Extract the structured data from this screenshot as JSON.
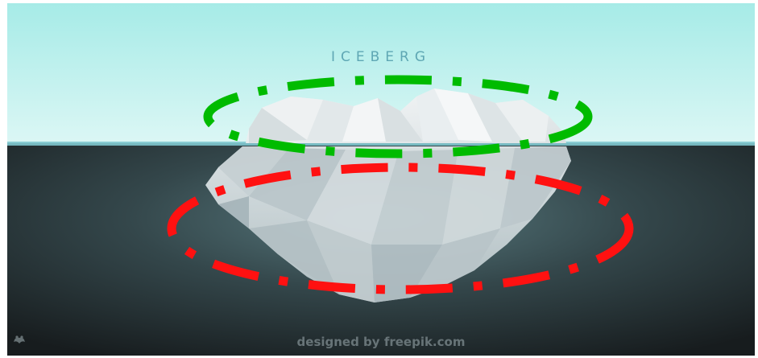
{
  "scene": {
    "title": "ICEBERG",
    "credit": {
      "prefix": "designed by",
      "brand": "freepik.com",
      "logo_icon": "freepik-logo-icon"
    },
    "colors": {
      "sky_top": "#a9ece8",
      "sky_bottom": "#d8f6f4",
      "water_light": "#4f6f73",
      "water_dark": "#1c2123",
      "ice_light": "#f4f6f7",
      "ice_shadow": "#c9d3d6",
      "above_water_ellipse": "#00bb00",
      "below_water_ellipse": "#ff0000"
    },
    "annotations": [
      {
        "name": "above-water-ellipse",
        "color": "green",
        "style": "dash-dot"
      },
      {
        "name": "below-water-ellipse",
        "color": "red",
        "style": "dash-dot"
      }
    ]
  }
}
